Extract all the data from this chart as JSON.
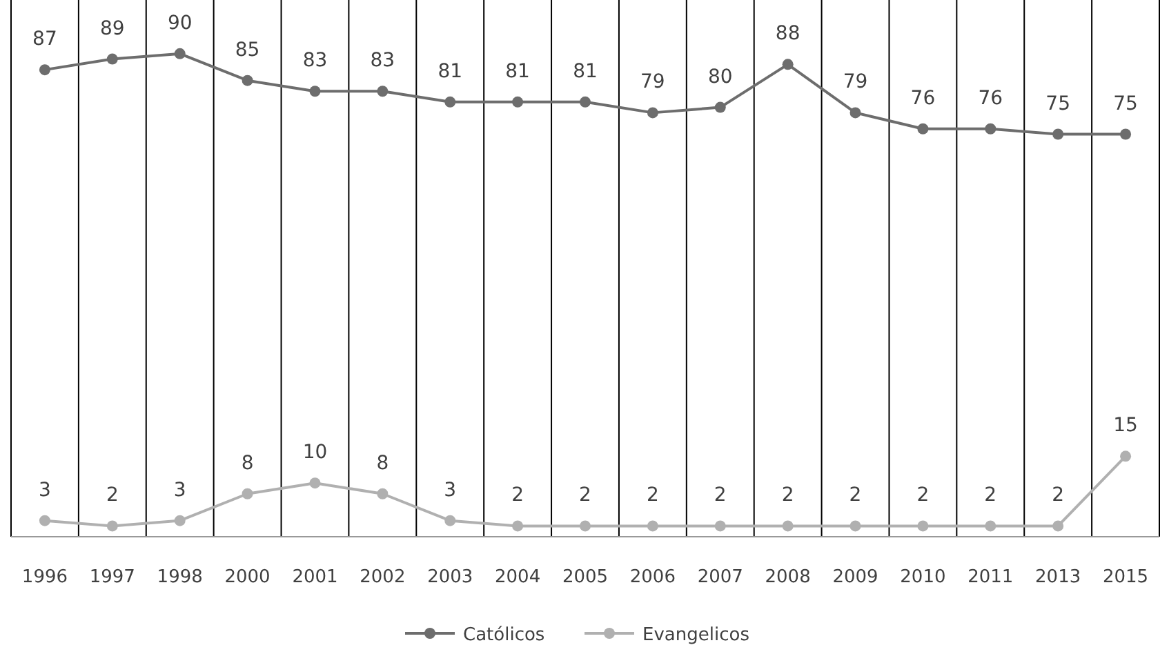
{
  "chart_data": {
    "type": "line",
    "categories": [
      "1996",
      "1997",
      "1998",
      "2000",
      "2001",
      "2002",
      "2003",
      "2004",
      "2005",
      "2006",
      "2007",
      "2008",
      "2009",
      "2010",
      "2011",
      "2013",
      "2015"
    ],
    "series": [
      {
        "name": "Católicos",
        "color": "#6d6d6d",
        "values": [
          87,
          89,
          90,
          85,
          83,
          83,
          81,
          81,
          81,
          79,
          80,
          88,
          79,
          76,
          76,
          75,
          75
        ]
      },
      {
        "name": "Evangelicos",
        "color": "#b0b0b0",
        "values": [
          3,
          2,
          3,
          8,
          10,
          8,
          3,
          2,
          2,
          2,
          2,
          2,
          2,
          2,
          2,
          2,
          15
        ]
      }
    ],
    "ylim": [
      0,
      100
    ],
    "grid": "x",
    "legend": "bottom",
    "marker": "circle",
    "line_style": "solid",
    "data_labels": true
  }
}
